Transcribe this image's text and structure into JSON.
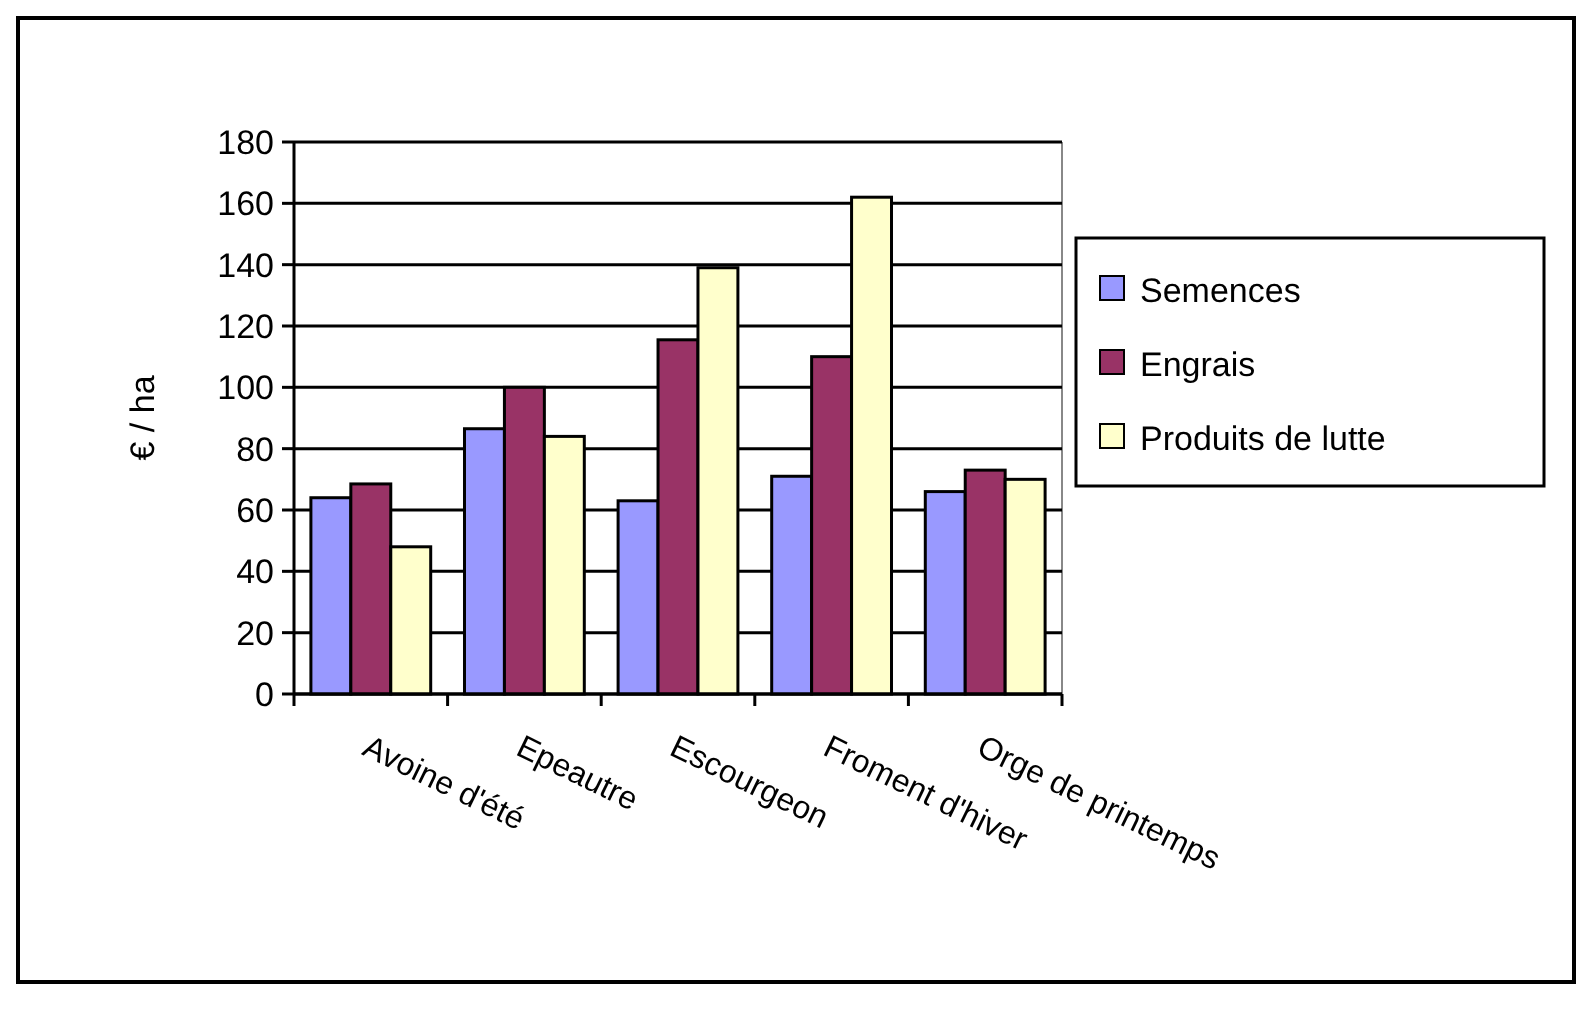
{
  "chart_data": {
    "type": "bar",
    "ylabel": "€ / ha",
    "categories": [
      "Avoine d'été",
      "Epeautre",
      "Escourgeon",
      "Froment d'hiver",
      "Orge de printemps"
    ],
    "series": [
      {
        "name": "Semences",
        "color": "#9999ff",
        "values": [
          64,
          86.5,
          63,
          71,
          66
        ]
      },
      {
        "name": "Engrais",
        "color": "#993366",
        "values": [
          68.5,
          100,
          115.5,
          110,
          73
        ]
      },
      {
        "name": "Produits de lutte",
        "color": "#ffffcc",
        "values": [
          48,
          84,
          139,
          162,
          70
        ]
      }
    ],
    "ylim": [
      0,
      180
    ],
    "yticks": [
      0,
      20,
      40,
      60,
      80,
      100,
      120,
      140,
      160,
      180
    ],
    "grid": "y",
    "legend": "right"
  }
}
